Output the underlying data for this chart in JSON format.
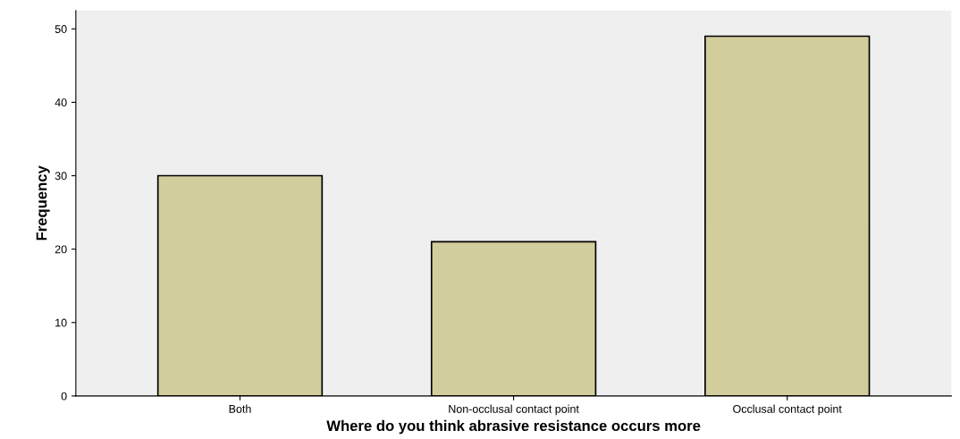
{
  "chart_data": {
    "type": "bar",
    "xlabel": "Where do you think abrasive resistance occurs more",
    "ylabel": "Frequency",
    "categories": [
      "Both",
      "Non-occlusal contact point",
      "Occlusal contact point"
    ],
    "values": [
      30,
      21,
      49
    ],
    "color": "#d2cd9c",
    "ylim": [
      0,
      52.5
    ],
    "yticks": [
      0,
      10,
      20,
      30,
      40,
      50
    ],
    "grid": false
  }
}
